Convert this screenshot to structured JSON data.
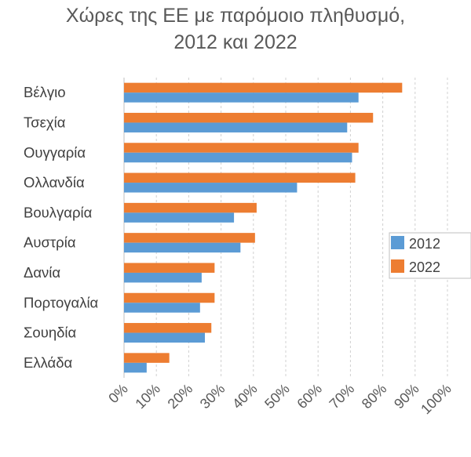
{
  "chart_data": {
    "type": "bar",
    "orientation": "horizontal",
    "title_lines": [
      "Χώρες της ΕΕ με παρόμοιο πληθυσμό,",
      "2012 και 2022"
    ],
    "categories": [
      "Βέλγιο",
      "Τσεχία",
      "Ουγγαρία",
      "Ολλανδία",
      "Βουλγαρία",
      "Αυστρία",
      "Δανία",
      "Πορτογαλία",
      "Σουηδία",
      "Ελλάδα"
    ],
    "series": [
      {
        "name": "2012",
        "color": "#5B9BD5",
        "values": [
          72.5,
          69,
          70.5,
          53.5,
          34,
          36,
          24,
          23.5,
          25,
          7
        ]
      },
      {
        "name": "2022",
        "color": "#ED7D31",
        "values": [
          86,
          77,
          72.5,
          71.5,
          41,
          40.5,
          28,
          28,
          27,
          14
        ]
      }
    ],
    "xlim": [
      0,
      100
    ],
    "x_ticks": [
      "0%",
      "10%",
      "20%",
      "30%",
      "40%",
      "50%",
      "60%",
      "70%",
      "80%",
      "90%",
      "100%"
    ],
    "grid": "vertical-dashed",
    "legend_position": "right"
  }
}
